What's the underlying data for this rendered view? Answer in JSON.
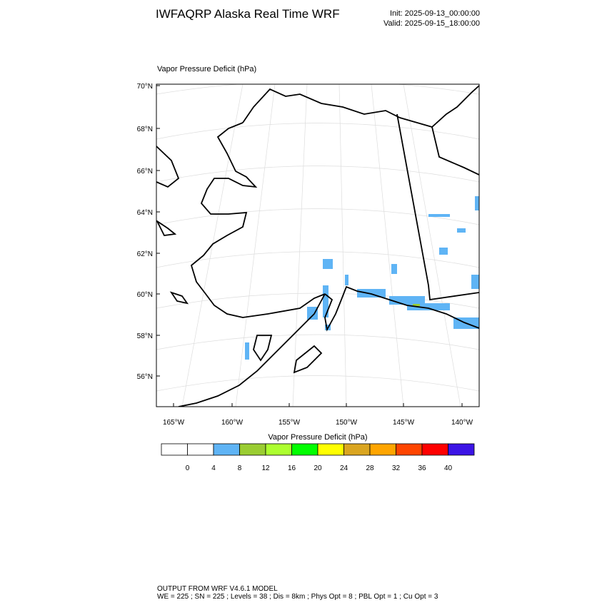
{
  "header": {
    "title": "IWFAQRP Alaska Real Time WRF",
    "init": "Init: 2025-09-13_00:00:00",
    "valid": "Valid: 2025-09-15_18:00:00"
  },
  "plot": {
    "label": "Vapor Pressure Deficit   (hPa)",
    "lat_labels": [
      "70°N",
      "68°N",
      "66°N",
      "64°N",
      "62°N",
      "60°N",
      "58°N",
      "56°N"
    ],
    "lon_labels": [
      "165°W",
      "160°W",
      "155°W",
      "150°W",
      "145°W",
      "140°W"
    ]
  },
  "colorbar": {
    "title": "Vapor Pressure Deficit  (hPa)",
    "colors": [
      "#ffffff",
      "#ffffff",
      "#5fb4f5",
      "#9acd32",
      "#adff2f",
      "#00ff00",
      "#ffff00",
      "#daa520",
      "#ffa500",
      "#ff4500",
      "#ff0000",
      "#3c14e6"
    ],
    "levels": [
      0,
      4,
      8,
      12,
      16,
      20,
      24,
      28,
      32,
      36,
      40
    ]
  },
  "footer": {
    "line1": "OUTPUT FROM WRF V4.6.1 MODEL",
    "line2": "WE = 225 ; SN = 225 ; Levels = 38 ; Dis = 8km ; Phys Opt = 8 ; PBL Opt = 1 ; Cu Opt = 3"
  }
}
